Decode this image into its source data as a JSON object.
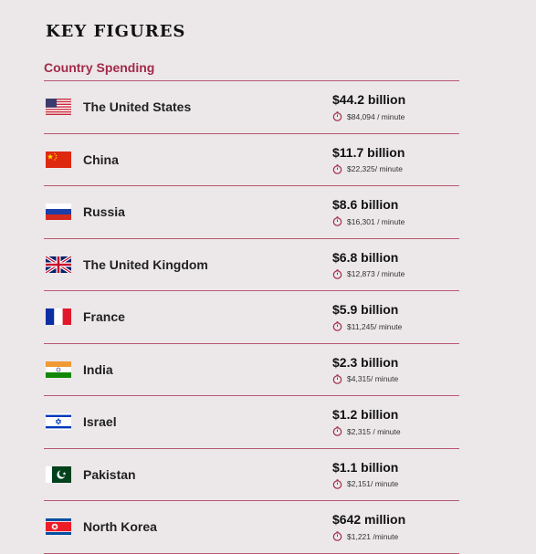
{
  "header": {
    "title": "KEY FIGURES",
    "subtitle": "Country Spending"
  },
  "colors": {
    "accent": "#a32a4a",
    "divider": "#b85872",
    "background": "#ece8e9"
  },
  "rows": [
    {
      "country": "The United States",
      "flag": "us-flag-icon",
      "amount": "$44.2 billion",
      "rate": "$84,094 / minute"
    },
    {
      "country": "China",
      "flag": "china-flag-icon",
      "amount": "$11.7 billion",
      "rate": "$22,325/ minute"
    },
    {
      "country": "Russia",
      "flag": "russia-flag-icon",
      "amount": "$8.6 billion",
      "rate": "$16,301 / minute"
    },
    {
      "country": "The United Kingdom",
      "flag": "uk-flag-icon",
      "amount": "$6.8 billion",
      "rate": "$12,873 / minute"
    },
    {
      "country": "France",
      "flag": "france-flag-icon",
      "amount": "$5.9 billion",
      "rate": "$11,245/ minute"
    },
    {
      "country": "India",
      "flag": "india-flag-icon",
      "amount": "$2.3 billion",
      "rate": "$4,315/ minute"
    },
    {
      "country": "Israel",
      "flag": "israel-flag-icon",
      "amount": "$1.2 billion",
      "rate": "$2,315 / minute"
    },
    {
      "country": "Pakistan",
      "flag": "pakistan-flag-icon",
      "amount": "$1.1 billion",
      "rate": "$2,151/ minute"
    },
    {
      "country": "North Korea",
      "flag": "north-korea-flag-icon",
      "amount": "$642 million",
      "rate": "$1,221 /minute"
    }
  ]
}
